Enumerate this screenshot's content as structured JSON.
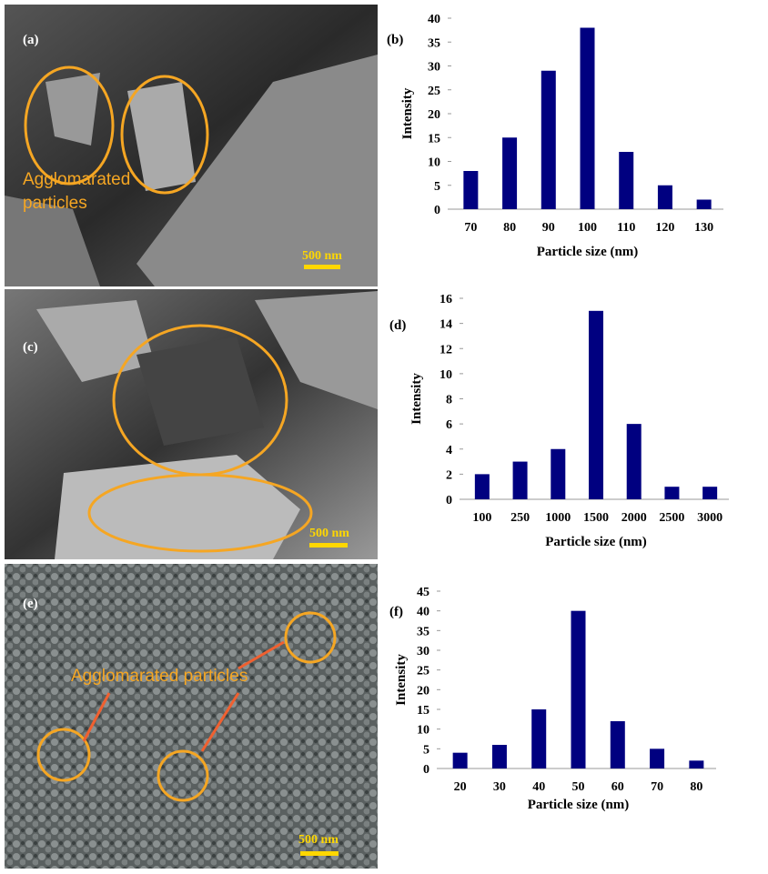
{
  "chart_data": [
    {
      "type": "bar",
      "label": "(b)",
      "x_label": "Particle size (nm)",
      "y_label": "Intensity",
      "categories": [
        "70",
        "80",
        "90",
        "100",
        "110",
        "120",
        "130"
      ],
      "values": [
        8,
        15,
        29,
        38,
        12,
        5,
        2
      ],
      "color": "#000080",
      "ylim": [
        0,
        40
      ],
      "yticks": [
        0,
        5,
        10,
        15,
        20,
        25,
        30,
        35,
        40
      ]
    },
    {
      "type": "bar",
      "label": "(d)",
      "x_label": "Particle size (nm)",
      "y_label": "Intensity",
      "categories": [
        "100",
        "250",
        "1000",
        "1500",
        "2000",
        "2500",
        "3000"
      ],
      "values": [
        2,
        3,
        4,
        15,
        6,
        1,
        1
      ],
      "color": "#000080",
      "ylim": [
        0,
        16
      ],
      "yticks": [
        0,
        2,
        4,
        6,
        8,
        10,
        12,
        14,
        16
      ]
    },
    {
      "type": "bar",
      "label": "(f)",
      "x_label": "Particle size (nm)",
      "y_label": "Intensity",
      "categories": [
        "20",
        "30",
        "40",
        "50",
        "60",
        "70",
        "80"
      ],
      "values": [
        4,
        6,
        15,
        40,
        12,
        5,
        2
      ],
      "color": "#000080",
      "ylim": [
        0,
        45
      ],
      "yticks": [
        0,
        5,
        10,
        15,
        20,
        25,
        30,
        35,
        40,
        45
      ]
    }
  ],
  "images": [
    {
      "label": "(a)",
      "annotation": [
        "Agglomarated",
        "particles"
      ],
      "scale": "500 nm"
    },
    {
      "label": "(c)",
      "scale": "500 nm"
    },
    {
      "label": "(e)",
      "annotation": [
        "Agglomarated particles"
      ],
      "scale": "500 nm"
    }
  ]
}
